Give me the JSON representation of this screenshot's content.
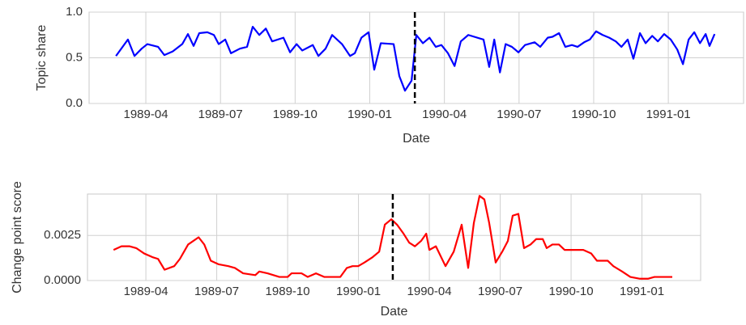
{
  "chart_data": [
    {
      "type": "line",
      "xlabel": "Date",
      "ylabel": "Topic share",
      "color": "#0000ff",
      "grid": true,
      "xlim": [
        1989.06,
        1991.252
      ],
      "ylim": [
        0,
        1
      ],
      "xticks": [
        {
          "value": 1989.25,
          "label": "1989-04"
        },
        {
          "value": 1989.5,
          "label": "1989-07"
        },
        {
          "value": 1989.75,
          "label": "1989-10"
        },
        {
          "value": 1990.0,
          "label": "1990-01"
        },
        {
          "value": 1990.25,
          "label": "1990-04"
        },
        {
          "value": 1990.5,
          "label": "1990-07"
        },
        {
          "value": 1990.75,
          "label": "1990-10"
        },
        {
          "value": 1991.0,
          "label": "1991-01"
        }
      ],
      "yticks": [
        {
          "value": 0,
          "label": "0.0"
        },
        {
          "value": 0.5,
          "label": "0.5"
        },
        {
          "value": 1,
          "label": "1.0"
        }
      ],
      "changepoint": 1990.151,
      "x": [
        1989.15,
        1989.19,
        1989.212,
        1989.236,
        1989.255,
        1989.291,
        1989.312,
        1989.34,
        1989.372,
        1989.391,
        1989.41,
        1989.429,
        1989.456,
        1989.478,
        1989.494,
        1989.516,
        1989.535,
        1989.565,
        1989.589,
        1989.608,
        1989.63,
        1989.652,
        1989.673,
        1989.711,
        1989.733,
        1989.755,
        1989.774,
        1989.809,
        1989.828,
        1989.852,
        1989.874,
        1989.907,
        1989.934,
        1989.95,
        1989.972,
        1989.996,
        1990.015,
        1990.037,
        1990.08,
        1990.099,
        1990.118,
        1990.14,
        1990.156,
        1990.178,
        1990.2,
        1990.221,
        1990.24,
        1990.262,
        1990.284,
        1990.305,
        1990.33,
        1990.381,
        1990.4,
        1990.417,
        1990.436,
        1990.455,
        1990.476,
        1990.498,
        1990.52,
        1990.552,
        1990.571,
        1990.596,
        1990.612,
        1990.634,
        1990.655,
        1990.677,
        1990.696,
        1990.718,
        1990.737,
        1990.758,
        1990.78,
        1990.802,
        1990.824,
        1990.843,
        1990.864,
        1990.883,
        1990.905,
        1990.924,
        1990.946,
        1990.965,
        1990.986,
        1991.008,
        1991.03,
        1991.049,
        1991.068,
        1991.087,
        1991.106,
        1991.125,
        1991.138,
        1991.155
      ],
      "values": [
        0.52,
        0.7,
        0.52,
        0.6,
        0.65,
        0.62,
        0.53,
        0.57,
        0.65,
        0.76,
        0.63,
        0.77,
        0.78,
        0.75,
        0.65,
        0.7,
        0.55,
        0.6,
        0.62,
        0.84,
        0.75,
        0.82,
        0.68,
        0.72,
        0.56,
        0.65,
        0.58,
        0.64,
        0.52,
        0.6,
        0.75,
        0.65,
        0.52,
        0.55,
        0.72,
        0.78,
        0.37,
        0.66,
        0.65,
        0.3,
        0.14,
        0.25,
        0.75,
        0.66,
        0.72,
        0.62,
        0.64,
        0.55,
        0.41,
        0.68,
        0.75,
        0.7,
        0.4,
        0.7,
        0.34,
        0.65,
        0.62,
        0.56,
        0.64,
        0.67,
        0.62,
        0.72,
        0.73,
        0.77,
        0.62,
        0.64,
        0.62,
        0.67,
        0.7,
        0.79,
        0.75,
        0.72,
        0.68,
        0.62,
        0.7,
        0.49,
        0.77,
        0.66,
        0.74,
        0.68,
        0.76,
        0.7,
        0.59,
        0.43,
        0.7,
        0.78,
        0.66,
        0.76,
        0.63,
        0.76
      ]
    },
    {
      "type": "line",
      "xlabel": "Date",
      "ylabel": "Change point score",
      "color": "#ff0000",
      "grid": true,
      "xlim": [
        1989.044,
        1991.207
      ],
      "ylim": [
        0,
        0.0048
      ],
      "xticks": [
        {
          "value": 1989.25,
          "label": "1989-04"
        },
        {
          "value": 1989.5,
          "label": "1989-07"
        },
        {
          "value": 1989.75,
          "label": "1989-10"
        },
        {
          "value": 1990.0,
          "label": "1990-01"
        },
        {
          "value": 1990.25,
          "label": "1990-04"
        },
        {
          "value": 1990.5,
          "label": "1990-07"
        },
        {
          "value": 1990.75,
          "label": "1990-10"
        },
        {
          "value": 1991.0,
          "label": "1991-01"
        }
      ],
      "yticks": [
        {
          "value": 0,
          "label": "0.0000"
        },
        {
          "value": 0.0025,
          "label": "0.0025"
        }
      ],
      "changepoint": 1990.121,
      "x": [
        1989.136,
        1989.164,
        1989.193,
        1989.216,
        1989.244,
        1989.273,
        1989.293,
        1989.316,
        1989.35,
        1989.37,
        1989.399,
        1989.436,
        1989.456,
        1989.479,
        1989.507,
        1989.541,
        1989.564,
        1989.593,
        1989.636,
        1989.65,
        1989.679,
        1989.721,
        1989.75,
        1989.764,
        1989.799,
        1989.821,
        1989.85,
        1989.879,
        1989.907,
        1989.936,
        1989.959,
        1989.979,
        1989.999,
        1990.021,
        1990.05,
        1990.073,
        1990.093,
        1990.116,
        1990.136,
        1990.159,
        1990.179,
        1990.199,
        1990.221,
        1990.239,
        1990.25,
        1990.273,
        1990.307,
        1990.336,
        1990.364,
        1990.387,
        1990.407,
        1990.427,
        1990.444,
        1990.461,
        1990.484,
        1990.507,
        1990.527,
        1990.544,
        1990.564,
        1990.584,
        1990.607,
        1990.627,
        1990.65,
        1990.664,
        1990.684,
        1990.707,
        1990.727,
        1990.793,
        1990.821,
        1990.841,
        1990.879,
        1990.899,
        1990.93,
        1990.959,
        1990.993,
        1991.021,
        1991.044,
        1991.079,
        1991.107
      ],
      "values": [
        0.0017,
        0.0019,
        0.0019,
        0.0018,
        0.0015,
        0.0013,
        0.0012,
        0.0006,
        0.0008,
        0.0012,
        0.002,
        0.0024,
        0.002,
        0.0011,
        0.0009,
        0.0008,
        0.0007,
        0.0004,
        0.0003,
        0.0005,
        0.0004,
        0.0002,
        0.0002,
        0.0004,
        0.0004,
        0.0002,
        0.0004,
        0.0002,
        0.0002,
        0.0002,
        0.0007,
        0.0008,
        0.0008,
        0.001,
        0.0013,
        0.0016,
        0.0031,
        0.0034,
        0.0031,
        0.0026,
        0.0021,
        0.0019,
        0.0022,
        0.0026,
        0.0017,
        0.0019,
        0.0008,
        0.0016,
        0.0031,
        0.0007,
        0.0032,
        0.0047,
        0.0045,
        0.0032,
        0.001,
        0.0016,
        0.0022,
        0.0036,
        0.0037,
        0.0018,
        0.002,
        0.0023,
        0.0023,
        0.0018,
        0.002,
        0.002,
        0.0017,
        0.0017,
        0.0015,
        0.0011,
        0.0011,
        0.0008,
        0.0005,
        0.0002,
        0.0001,
        0.0001,
        0.0002,
        0.0002,
        0.0002
      ]
    }
  ]
}
